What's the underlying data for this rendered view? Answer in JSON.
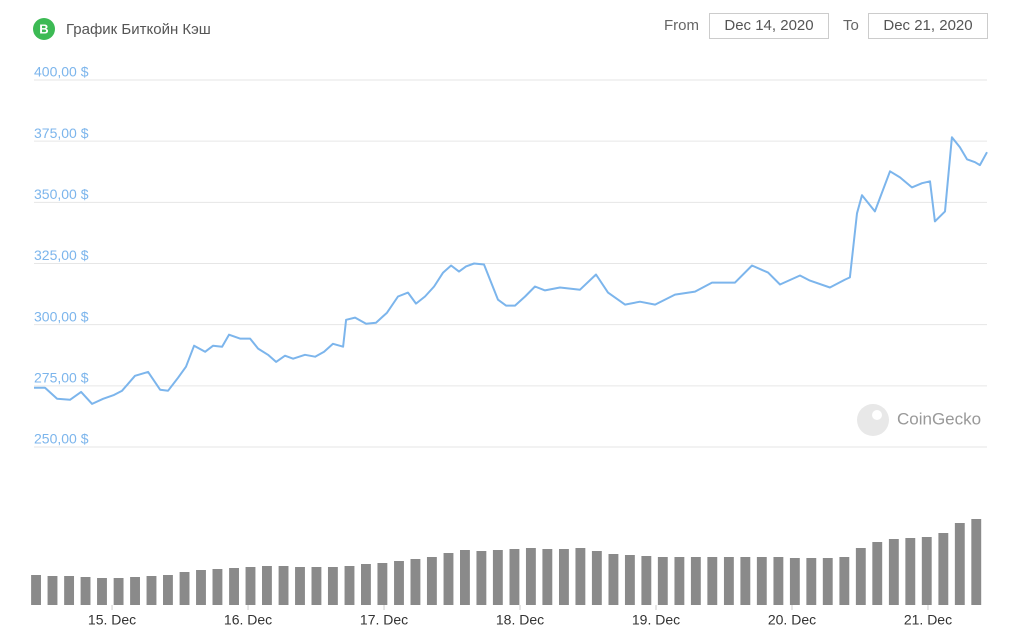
{
  "header": {
    "title": "График Биткойн Кэш",
    "from_label": "From",
    "from_date": "Dec 14, 2020",
    "to_label": "To",
    "to_date": "Dec 21, 2020"
  },
  "watermark": "CoinGecko",
  "chart_data": [
    {
      "type": "line",
      "color": "#7cb5ec",
      "x": [
        -0.574,
        -0.493,
        -0.404,
        -0.309,
        -0.228,
        -0.147,
        -0.066,
        0.015,
        0.074,
        0.169,
        0.265,
        0.353,
        0.412,
        0.485,
        0.544,
        0.603,
        0.684,
        0.743,
        0.809,
        0.86,
        0.941,
        1.015,
        1.074,
        1.147,
        1.206,
        1.272,
        1.331,
        1.419,
        1.493,
        1.559,
        1.625,
        1.699,
        1.721,
        1.787,
        1.868,
        1.941,
        2.022,
        2.103,
        2.176,
        2.235,
        2.301,
        2.368,
        2.434,
        2.493,
        2.551,
        2.603,
        2.662,
        2.735,
        2.779,
        2.838,
        2.897,
        2.963,
        3.037,
        3.11,
        3.184,
        3.294,
        3.441,
        3.559,
        3.647,
        3.772,
        3.882,
        3.993,
        4.14,
        4.287,
        4.412,
        4.581,
        4.706,
        4.824,
        4.912,
        5.059,
        5.132,
        5.279,
        5.39,
        5.426,
        5.478,
        5.515,
        5.61,
        5.721,
        5.794,
        5.882,
        5.956,
        6.015,
        6.051,
        6.125,
        6.176,
        6.235,
        6.287,
        6.346,
        6.382,
        6.434
      ],
      "values": [
        274.2,
        274.2,
        269.7,
        269.3,
        272.5,
        267.6,
        269.7,
        271.3,
        273.0,
        279.1,
        280.7,
        273.4,
        273.0,
        278.3,
        282.8,
        291.4,
        288.9,
        291.4,
        291.0,
        295.9,
        294.3,
        294.3,
        290.2,
        287.7,
        284.8,
        287.3,
        286.1,
        287.7,
        286.9,
        288.9,
        292.2,
        291.0,
        302.0,
        302.9,
        300.4,
        300.8,
        304.9,
        311.5,
        313.1,
        308.6,
        311.5,
        315.6,
        321.3,
        324.2,
        321.7,
        323.8,
        325.0,
        324.6,
        318.4,
        310.2,
        307.8,
        307.8,
        311.5,
        315.6,
        314.0,
        315.2,
        314.3,
        320.5,
        313.1,
        308.2,
        309.4,
        308.2,
        312.3,
        313.5,
        317.2,
        317.2,
        324.2,
        321.3,
        316.4,
        320.1,
        318.0,
        315.2,
        318.4,
        319.3,
        345.5,
        352.9,
        346.3,
        362.7,
        360.2,
        356.1,
        357.8,
        358.6,
        342.2,
        346.3,
        376.6,
        372.5,
        367.6,
        366.4,
        365.2,
        370.5
      ],
      "xlim": [
        -0.574,
        6.434
      ],
      "ylim": [
        250,
        400
      ],
      "yticks": [
        {
          "value": 250,
          "label": "250,00 $"
        },
        {
          "value": 275,
          "label": "275,00 $"
        },
        {
          "value": 300,
          "label": "300,00 $"
        },
        {
          "value": 325,
          "label": "325,00 $"
        },
        {
          "value": 350,
          "label": "350,00 $"
        },
        {
          "value": 375,
          "label": "375,00 $"
        },
        {
          "value": 400,
          "label": "400,00 $"
        }
      ],
      "grid": true
    },
    {
      "type": "bar",
      "color": "#8a8a8a",
      "x": [
        -0.559,
        -0.438,
        -0.316,
        -0.195,
        -0.074,
        0.048,
        0.169,
        0.29,
        0.411,
        0.533,
        0.654,
        0.775,
        0.897,
        1.018,
        1.139,
        1.261,
        1.382,
        1.503,
        1.624,
        1.746,
        1.867,
        1.988,
        2.11,
        2.231,
        2.352,
        2.474,
        2.595,
        2.716,
        2.837,
        2.959,
        3.08,
        3.201,
        3.323,
        3.444,
        3.565,
        3.687,
        3.808,
        3.929,
        4.05,
        4.172,
        4.293,
        4.414,
        4.536,
        4.657,
        4.778,
        4.9,
        5.021,
        5.142,
        5.263,
        5.385,
        5.506,
        5.627,
        5.749,
        5.87,
        5.991,
        6.113,
        6.234,
        6.355
      ],
      "values": [
        30,
        29,
        29,
        28,
        27,
        27,
        28,
        29,
        30,
        33,
        35,
        36,
        37,
        38,
        39,
        39,
        38,
        38,
        38,
        39,
        41,
        42,
        44,
        46,
        48,
        52,
        55,
        54,
        55,
        56,
        57,
        56,
        56,
        57,
        54,
        51,
        50,
        49,
        48,
        48,
        48,
        48,
        48,
        48,
        48,
        48,
        47,
        47,
        47,
        48,
        57,
        63,
        66,
        67,
        68,
        72,
        82,
        86
      ],
      "xlim": [
        -0.574,
        6.434
      ],
      "ylim": [
        0,
        100
      ],
      "xticks": [
        {
          "value": 0,
          "label": "15. Dec"
        },
        {
          "value": 1,
          "label": "16. Dec"
        },
        {
          "value": 2,
          "label": "17. Dec"
        },
        {
          "value": 3,
          "label": "18. Dec"
        },
        {
          "value": 4,
          "label": "19. Dec"
        },
        {
          "value": 5,
          "label": "20. Dec"
        },
        {
          "value": 6,
          "label": "21. Dec"
        }
      ]
    }
  ]
}
